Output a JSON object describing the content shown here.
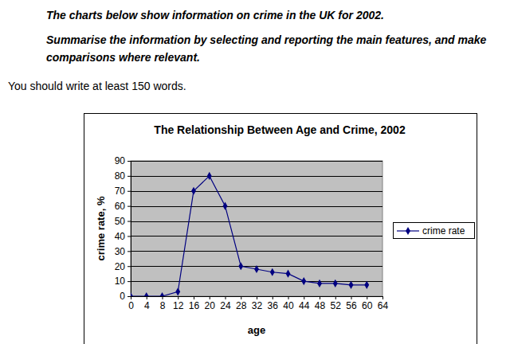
{
  "header": {
    "lines": [
      "The charts below show information on crime in the UK for 2002.",
      "Summarise the information by selecting and reporting the main features, and make comparisons where relevant."
    ],
    "instruction": "You should write at least 150 words."
  },
  "chart_data": {
    "type": "line",
    "title": "The Relationship Between Age and Crime, 2002",
    "x_label": "age",
    "y_label": "crime rate, %",
    "x": [
      0,
      4,
      8,
      12,
      16,
      20,
      24,
      28,
      32,
      36,
      40,
      44,
      48,
      52,
      56,
      60
    ],
    "series": [
      {
        "name": "crime rate",
        "color": "#000080",
        "marker": "diamond",
        "values": [
          0,
          0,
          0,
          3,
          70,
          80,
          60,
          20,
          18,
          16,
          15,
          10,
          8.5,
          8.5,
          7.5,
          7.5
        ]
      }
    ],
    "xlim": [
      0,
      64
    ],
    "xticks": [
      0,
      4,
      8,
      12,
      16,
      20,
      24,
      28,
      32,
      36,
      40,
      44,
      48,
      52,
      56,
      60,
      64
    ],
    "ylim": [
      0,
      90
    ],
    "yticks": [
      0,
      10,
      20,
      30,
      40,
      50,
      60,
      70,
      80,
      90
    ],
    "grid": true,
    "legend": "right"
  }
}
